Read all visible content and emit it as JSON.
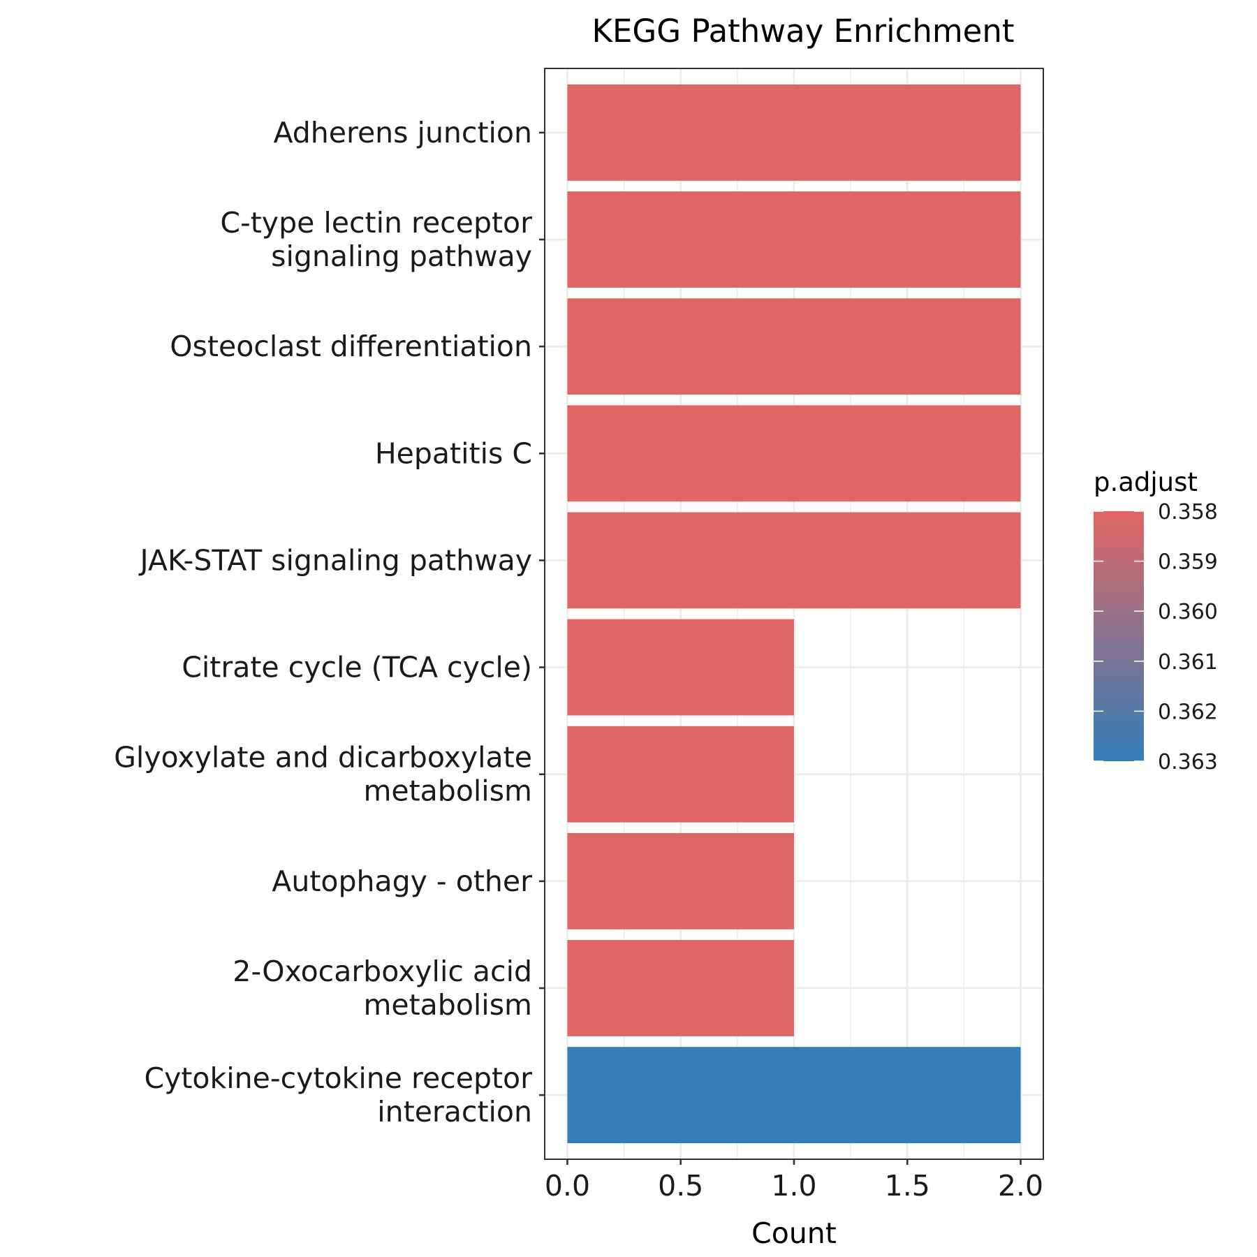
{
  "chart_data": {
    "type": "bar",
    "orientation": "horizontal",
    "title": "KEGG Pathway Enrichment",
    "xlabel": "Count",
    "ylabel": "",
    "xlim": [
      -0.1,
      2.1
    ],
    "x_ticks": [
      "0.0",
      "0.5",
      "1.0",
      "1.5",
      "2.0"
    ],
    "x_tick_values": [
      0,
      0.5,
      1.0,
      1.5,
      2.0
    ],
    "grid": true,
    "categories": [
      [
        "Adherens junction"
      ],
      [
        "C-type lectin receptor",
        "signaling pathway"
      ],
      [
        "Osteoclast differentiation"
      ],
      [
        "Hepatitis C"
      ],
      [
        "JAK-STAT signaling pathway"
      ],
      [
        "Citrate cycle (TCA cycle)"
      ],
      [
        "Glyoxylate and dicarboxylate",
        "metabolism"
      ],
      [
        "Autophagy - other"
      ],
      [
        "2-Oxocarboxylic acid",
        "metabolism"
      ],
      [
        "Cytokine-cytokine receptor",
        "interaction"
      ]
    ],
    "values": [
      2,
      2,
      2,
      2,
      2,
      1,
      1,
      1,
      1,
      2
    ],
    "p_adjust": [
      0.358,
      0.358,
      0.358,
      0.358,
      0.358,
      0.358,
      0.358,
      0.358,
      0.358,
      0.363
    ],
    "legend": {
      "title": "p.adjust",
      "position": "right",
      "labels": [
        "0.358",
        "0.359",
        "0.360",
        "0.361",
        "0.362",
        "0.363"
      ],
      "values": [
        0.358,
        0.359,
        0.36,
        0.361,
        0.362,
        0.363
      ],
      "range": [
        0.358,
        0.363
      ],
      "color_low": "#e06663",
      "color_high": "#327eba"
    }
  }
}
